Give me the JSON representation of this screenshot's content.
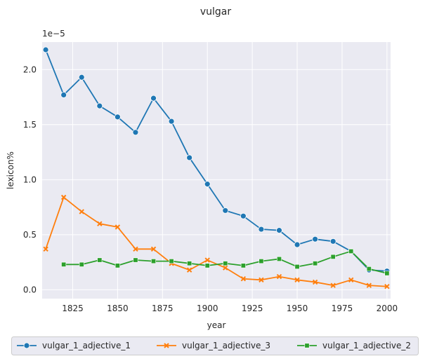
{
  "chart_data": {
    "type": "line",
    "title": "vulgar",
    "xlabel": "year",
    "ylabel": "lexicon%",
    "y_offset_label": "1e−5",
    "xlim": [
      1808,
      2002
    ],
    "ylim": [
      -0.08,
      2.25
    ],
    "x_ticks": [
      1825,
      1850,
      1875,
      1900,
      1925,
      1950,
      1975,
      2000
    ],
    "y_ticks": [
      0.0,
      0.5,
      1.0,
      1.5,
      2.0
    ],
    "y_tick_labels": [
      "0.0",
      "0.5",
      "1.0",
      "1.5",
      "2.0"
    ],
    "grid": true,
    "legend_position": "bottom",
    "series": [
      {
        "name": "vulgar_1_adjective_1",
        "color": "#1f77b4",
        "marker": "circle",
        "x": [
          1810,
          1820,
          1830,
          1840,
          1850,
          1860,
          1870,
          1880,
          1890,
          1900,
          1910,
          1920,
          1930,
          1940,
          1950,
          1960,
          1970,
          1980,
          1990,
          2000
        ],
        "y": [
          2.18,
          1.77,
          1.93,
          1.67,
          1.57,
          1.43,
          1.74,
          1.53,
          1.2,
          0.96,
          0.72,
          0.67,
          0.55,
          0.54,
          0.41,
          0.46,
          0.44,
          0.35,
          0.18,
          0.17
        ]
      },
      {
        "name": "vulgar_1_adjective_3",
        "color": "#ff7f0e",
        "marker": "x",
        "x": [
          1810,
          1820,
          1830,
          1840,
          1850,
          1860,
          1870,
          1880,
          1890,
          1900,
          1910,
          1920,
          1930,
          1940,
          1950,
          1960,
          1970,
          1980,
          1990,
          2000
        ],
        "y": [
          0.37,
          0.84,
          0.71,
          0.6,
          0.57,
          0.37,
          0.37,
          0.24,
          0.18,
          0.27,
          0.2,
          0.1,
          0.09,
          0.12,
          0.09,
          0.07,
          0.04,
          0.09,
          0.04,
          0.03
        ]
      },
      {
        "name": "vulgar_1_adjective_2",
        "color": "#2ca02c",
        "marker": "square",
        "x": [
          1820,
          1830,
          1840,
          1850,
          1860,
          1870,
          1880,
          1890,
          1900,
          1910,
          1920,
          1930,
          1940,
          1950,
          1960,
          1970,
          1980,
          1990,
          2000
        ],
        "y": [
          0.23,
          0.23,
          0.27,
          0.22,
          0.27,
          0.26,
          0.26,
          0.24,
          0.22,
          0.24,
          0.22,
          0.26,
          0.28,
          0.21,
          0.24,
          0.3,
          0.35,
          0.19,
          0.15
        ]
      }
    ]
  }
}
